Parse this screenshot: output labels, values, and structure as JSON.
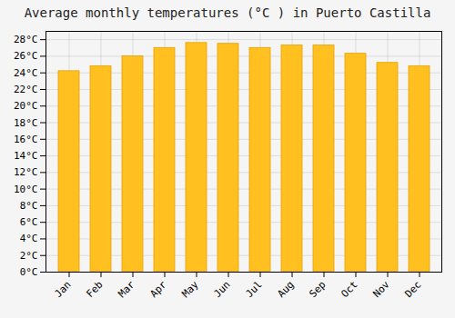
{
  "chart_data": {
    "type": "bar",
    "title": "Average monthly temperatures (°C ) in Puerto Castilla",
    "categories": [
      "Jan",
      "Feb",
      "Mar",
      "Apr",
      "May",
      "Jun",
      "Jul",
      "Aug",
      "Sep",
      "Oct",
      "Nov",
      "Dec"
    ],
    "values": [
      24.2,
      24.8,
      26.0,
      27.0,
      27.6,
      27.5,
      27.0,
      27.3,
      27.3,
      26.3,
      25.2,
      24.8
    ],
    "color": "#FFC020",
    "ylim": [
      0,
      29
    ],
    "yticks": [
      {
        "value": 0,
        "label": "0°C"
      },
      {
        "value": 2,
        "label": "2°C"
      },
      {
        "value": 4,
        "label": "4°C"
      },
      {
        "value": 6,
        "label": "6°C"
      },
      {
        "value": 8,
        "label": "8°C"
      },
      {
        "value": 10,
        "label": "10°C"
      },
      {
        "value": 12,
        "label": "12°C"
      },
      {
        "value": 14,
        "label": "14°C"
      },
      {
        "value": 16,
        "label": "16°C"
      },
      {
        "value": 18,
        "label": "18°C"
      },
      {
        "value": 20,
        "label": "20°C"
      },
      {
        "value": 22,
        "label": "22°C"
      },
      {
        "value": 24,
        "label": "24°C"
      },
      {
        "value": 26,
        "label": "26°C"
      },
      {
        "value": 28,
        "label": "28°C"
      }
    ],
    "grid": true
  }
}
